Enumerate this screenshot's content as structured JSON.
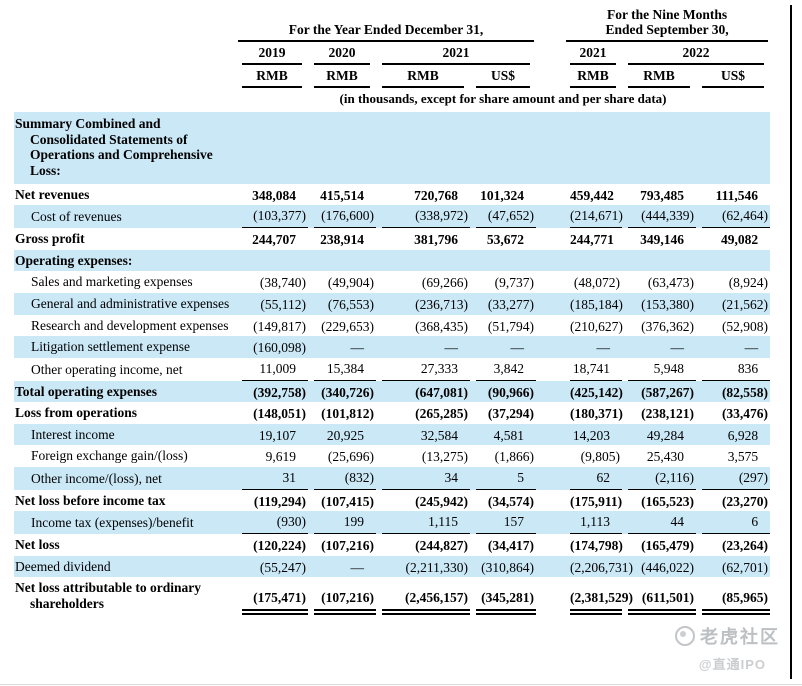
{
  "colors": {
    "row_stripe": "#cbe8f7"
  },
  "header": {
    "group1": "For the Year Ended December 31,",
    "group2": "For the Nine Months\nEnded September 30,",
    "years": [
      "2019",
      "2020",
      "2021",
      "2021",
      "2022"
    ],
    "currencies": [
      "RMB",
      "RMB",
      "RMB",
      "US$",
      "RMB",
      "RMB",
      "US$"
    ],
    "note": "(in thousands, except for share amount and per share data)"
  },
  "watermark": {
    "brand": "老虎社区",
    "handle": "@直通IPO"
  },
  "rows": [
    {
      "label": "Summary Combined and Consolidated Statements of Operations and Comprehensive Loss:",
      "style": "section",
      "underline": "",
      "values": [
        "",
        "",
        "",
        "",
        "",
        "",
        ""
      ]
    },
    {
      "label": "Net revenues",
      "style": "bold",
      "underline": "",
      "values": [
        "348,084",
        "415,514",
        "720,768",
        "101,324",
        "459,442",
        "793,485",
        "111,546"
      ]
    },
    {
      "label": "Cost of revenues",
      "style": "indent",
      "underline": "single",
      "values": [
        "(103,377)",
        "(176,600)",
        "(338,972)",
        "(47,652)",
        "(214,671)",
        "(444,339)",
        "(62,464)"
      ]
    },
    {
      "label": "Gross profit",
      "style": "bold",
      "underline": "",
      "values": [
        "244,707",
        "238,914",
        "381,796",
        "53,672",
        "244,771",
        "349,146",
        "49,082"
      ]
    },
    {
      "label": "Operating expenses:",
      "style": "bold",
      "underline": "",
      "values": [
        "",
        "",
        "",
        "",
        "",
        "",
        ""
      ]
    },
    {
      "label": "Sales and marketing expenses",
      "style": "indent",
      "underline": "",
      "values": [
        "(38,740)",
        "(49,904)",
        "(69,266)",
        "(9,737)",
        "(48,072)",
        "(63,473)",
        "(8,924)"
      ]
    },
    {
      "label": "General and administrative expenses",
      "style": "indent",
      "underline": "",
      "values": [
        "(55,112)",
        "(76,553)",
        "(236,713)",
        "(33,277)",
        "(185,184)",
        "(153,380)",
        "(21,562)"
      ]
    },
    {
      "label": "Research and development expenses",
      "style": "indent",
      "underline": "",
      "values": [
        "(149,817)",
        "(229,653)",
        "(368,435)",
        "(51,794)",
        "(210,627)",
        "(376,362)",
        "(52,908)"
      ]
    },
    {
      "label": "Litigation settlement expense",
      "style": "indent",
      "underline": "",
      "values": [
        "(160,098)",
        "—",
        "—",
        "—",
        "—",
        "—",
        "—"
      ]
    },
    {
      "label": "Other operating income, net",
      "style": "indent",
      "underline": "single",
      "values": [
        "11,009",
        "15,384",
        "27,333",
        "3,842",
        "18,741",
        "5,948",
        "836"
      ]
    },
    {
      "label": "Total operating expenses",
      "style": "bold",
      "underline": "",
      "values": [
        "(392,758)",
        "(340,726)",
        "(647,081)",
        "(90,966)",
        "(425,142)",
        "(587,267)",
        "(82,558)"
      ]
    },
    {
      "label": "Loss from operations",
      "style": "bold",
      "underline": "",
      "values": [
        "(148,051)",
        "(101,812)",
        "(265,285)",
        "(37,294)",
        "(180,371)",
        "(238,121)",
        "(33,476)"
      ]
    },
    {
      "label": "Interest income",
      "style": "indent",
      "underline": "",
      "values": [
        "19,107",
        "20,925",
        "32,584",
        "4,581",
        "14,203",
        "49,284",
        "6,928"
      ]
    },
    {
      "label": "Foreign exchange gain/(loss)",
      "style": "indent",
      "underline": "",
      "values": [
        "9,619",
        "(25,696)",
        "(13,275)",
        "(1,866)",
        "(9,805)",
        "25,430",
        "3,575"
      ]
    },
    {
      "label": "Other income/(loss), net",
      "style": "indent",
      "underline": "single",
      "values": [
        "31",
        "(832)",
        "34",
        "5",
        "62",
        "(2,116)",
        "(297)"
      ]
    },
    {
      "label": "Net loss before income tax",
      "style": "bold",
      "underline": "",
      "values": [
        "(119,294)",
        "(107,415)",
        "(245,942)",
        "(34,574)",
        "(175,911)",
        "(165,523)",
        "(23,270)"
      ]
    },
    {
      "label": "Income tax (expenses)/benefit",
      "style": "indent",
      "underline": "single",
      "values": [
        "(930)",
        "199",
        "1,115",
        "157",
        "1,113",
        "44",
        "6"
      ]
    },
    {
      "label": "Net loss",
      "style": "bold",
      "underline": "",
      "values": [
        "(120,224)",
        "(107,216)",
        "(244,827)",
        "(34,417)",
        "(174,798)",
        "(165,479)",
        "(23,264)"
      ]
    },
    {
      "label": "Deemed dividend",
      "style": "plain",
      "underline": "",
      "values": [
        "(55,247)",
        "—",
        "(2,211,330)",
        "(310,864)",
        "(2,206,731)",
        "(446,022)",
        "(62,701)"
      ]
    },
    {
      "label": "Net loss attributable to ordinary shareholders",
      "style": "bold",
      "underline": "double",
      "values": [
        "(175,471)",
        "(107,216)",
        "(2,456,157)",
        "(345,281)",
        "(2,381,529)",
        "(611,501)",
        "(85,965)"
      ]
    }
  ]
}
